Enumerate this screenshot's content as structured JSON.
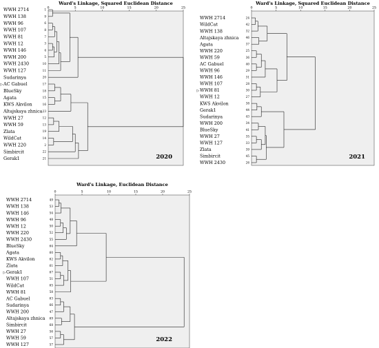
{
  "chart_data": [
    {
      "type": "dendrogram",
      "title": "Ward's Linkage, Squared Euclidean Distance",
      "year_label": "2020",
      "x_ticks": [
        "0",
        "5",
        "10",
        "15",
        "20",
        "25"
      ],
      "xlim": [
        0,
        25
      ],
      "marked_label": "AC Gabuel",
      "leaves": [
        {
          "name": "WWH 2714",
          "index": "1"
        },
        {
          "name": "WWH 138",
          "index": "9"
        },
        {
          "name": "WWH 96",
          "index": "6"
        },
        {
          "name": "WWH 107",
          "index": "8"
        },
        {
          "name": "WWH 81",
          "index": "7"
        },
        {
          "name": "WWH 12",
          "index": "3"
        },
        {
          "name": "WWH 146",
          "index": "4"
        },
        {
          "name": "WWH 200",
          "index": "5"
        },
        {
          "name": "WWH 2430",
          "index": "10"
        },
        {
          "name": "WWH 127",
          "index": "11"
        },
        {
          "name": "Sudarinya",
          "index": "20"
        },
        {
          "name": "AC Gabuel",
          "index": "17"
        },
        {
          "name": "BlueSky",
          "index": "18"
        },
        {
          "name": "Agata",
          "index": "15"
        },
        {
          "name": "KWS Akvilon",
          "index": "16"
        },
        {
          "name": "Altajskaya zhnica",
          "index": "23"
        },
        {
          "name": "WWH 27",
          "index": "12"
        },
        {
          "name": "WWH 59",
          "index": "13"
        },
        {
          "name": "Zlata",
          "index": "19"
        },
        {
          "name": "WildCat",
          "index": "14"
        },
        {
          "name": "WWH 220",
          "index": "2"
        },
        {
          "name": "Simbircit",
          "index": "22"
        },
        {
          "name": "Gerak1",
          "index": "21"
        }
      ],
      "merges": [
        [
          0,
          1,
          0.8
        ],
        [
          2,
          3,
          0.8
        ],
        [
          24,
          4,
          1.2
        ],
        [
          5,
          6,
          0.8
        ],
        [
          26,
          7,
          1.1
        ],
        [
          25,
          27,
          1.6
        ],
        [
          28,
          8,
          2.0
        ],
        [
          29,
          9,
          2.3
        ],
        [
          23,
          30,
          4.0
        ],
        [
          31,
          10,
          5.5
        ],
        [
          11,
          12,
          1.2
        ],
        [
          13,
          14,
          1.2
        ],
        [
          33,
          34,
          2.3
        ],
        [
          35,
          15,
          4.2
        ],
        [
          16,
          17,
          1.0
        ],
        [
          37,
          18,
          2.0
        ],
        [
          19,
          20,
          1.0
        ],
        [
          38,
          39,
          4.5
        ],
        [
          40,
          21,
          5.0
        ],
        [
          41,
          22,
          5.6
        ],
        [
          36,
          42,
          7.3
        ],
        [
          32,
          43,
          25.0
        ]
      ]
    },
    {
      "type": "dendrogram",
      "title": "Ward's Linkage, Squared Euclidean Distance",
      "year_label": "2021",
      "x_ticks": [
        "0",
        "5",
        "10",
        "15",
        "20",
        "25"
      ],
      "xlim": [
        0,
        25
      ],
      "marked_label": "WWH 81",
      "leaves": [
        {
          "name": "WWH 2714",
          "index": "24"
        },
        {
          "name": "WildCat",
          "index": "42"
        },
        {
          "name": "WWH 138",
          "index": "32"
        },
        {
          "name": "Altajskaya zhnica",
          "index": "46"
        },
        {
          "name": "Agata",
          "index": "37"
        },
        {
          "name": "WWH 220",
          "index": "25"
        },
        {
          "name": "WWH 59",
          "index": "36"
        },
        {
          "name": "AC Gabuel",
          "index": "40"
        },
        {
          "name": "WWH 96",
          "index": "29"
        },
        {
          "name": "WWH 146",
          "index": "31"
        },
        {
          "name": "WWH 107",
          "index": "28"
        },
        {
          "name": "WWH 81",
          "index": "30"
        },
        {
          "name": "WWH 12",
          "index": "27"
        },
        {
          "name": "KWS Akvilon",
          "index": "38"
        },
        {
          "name": "Gerak1",
          "index": "44"
        },
        {
          "name": "Sudarinya",
          "index": "43"
        },
        {
          "name": "WWH 200",
          "index": "34"
        },
        {
          "name": "BlueSky",
          "index": "41"
        },
        {
          "name": "WWH 27",
          "index": "35"
        },
        {
          "name": "WWH 127",
          "index": "33"
        },
        {
          "name": "Zlata",
          "index": "39"
        },
        {
          "name": "Simbircit",
          "index": "45"
        },
        {
          "name": "WWH 2430",
          "index": "26"
        }
      ],
      "merges": [
        [
          0,
          1,
          0.8
        ],
        [
          23,
          2,
          1.3
        ],
        [
          3,
          4,
          1.5
        ],
        [
          24,
          25,
          3.2
        ],
        [
          5,
          6,
          1.0
        ],
        [
          7,
          8,
          1.0
        ],
        [
          27,
          28,
          2.0
        ],
        [
          29,
          9,
          2.8
        ],
        [
          10,
          11,
          1.0
        ],
        [
          31,
          12,
          1.8
        ],
        [
          30,
          32,
          5.2
        ],
        [
          26,
          33,
          7.2
        ],
        [
          13,
          14,
          1.1
        ],
        [
          35,
          15,
          2.0
        ],
        [
          16,
          17,
          1.4
        ],
        [
          18,
          19,
          1.0
        ],
        [
          38,
          20,
          2.0
        ],
        [
          37,
          39,
          2.8
        ],
        [
          21,
          22,
          1.0
        ],
        [
          40,
          41,
          3.0
        ],
        [
          36,
          42,
          6.6
        ],
        [
          34,
          43,
          13.0
        ]
      ]
    },
    {
      "type": "dendrogram",
      "title": "Ward's Linkage, Euclidean Distance",
      "year_label": "2022",
      "x_ticks": [
        "0",
        "5",
        "10",
        "15",
        "20",
        "25"
      ],
      "xlim": [
        0,
        25
      ],
      "marked_label": "Gerak1",
      "leaves": [
        {
          "name": "WWH 2714",
          "index": "49"
        },
        {
          "name": "WWH 138",
          "index": "53"
        },
        {
          "name": "WWH 146",
          "index": "54"
        },
        {
          "name": "WWH 96",
          "index": "48"
        },
        {
          "name": "WWH 12",
          "index": "50"
        },
        {
          "name": "WWH 220",
          "index": "52"
        },
        {
          "name": "WWH 2430",
          "index": "55"
        },
        {
          "name": "BlueSky",
          "index": "64"
        },
        {
          "name": "Agata",
          "index": "60"
        },
        {
          "name": "KWS Akvilon",
          "index": "62"
        },
        {
          "name": "Zlata",
          "index": "61"
        },
        {
          "name": "Gerak1",
          "index": "67"
        },
        {
          "name": "WWH 107",
          "index": "51"
        },
        {
          "name": "WildCat",
          "index": "65"
        },
        {
          "name": "WWH 81",
          "index": "58"
        },
        {
          "name": "AC Gabuel",
          "index": "63"
        },
        {
          "name": "Sudarinya",
          "index": "66"
        },
        {
          "name": "WWH 200",
          "index": "47"
        },
        {
          "name": "Altajskaya zhnica",
          "index": "69"
        },
        {
          "name": "Simbircit",
          "index": "68"
        },
        {
          "name": "WWH 27",
          "index": "56"
        },
        {
          "name": "WWH 59",
          "index": "57"
        },
        {
          "name": "WWH 127",
          "index": "57"
        }
      ],
      "merges": [
        [
          0,
          1,
          0.7
        ],
        [
          23,
          2,
          1.1
        ],
        [
          3,
          4,
          1.0
        ],
        [
          25,
          5,
          1.5
        ],
        [
          26,
          6,
          2.1
        ],
        [
          24,
          27,
          2.8
        ],
        [
          28,
          7,
          4.0
        ],
        [
          8,
          9,
          1.0
        ],
        [
          30,
          10,
          1.4
        ],
        [
          11,
          12,
          1.0
        ],
        [
          32,
          13,
          1.6
        ],
        [
          31,
          33,
          2.4
        ],
        [
          34,
          14,
          2.9
        ],
        [
          29,
          35,
          9.5
        ],
        [
          15,
          16,
          1.0
        ],
        [
          37,
          17,
          1.6
        ],
        [
          18,
          19,
          1.2
        ],
        [
          38,
          39,
          2.8
        ],
        [
          20,
          21,
          1.0
        ],
        [
          41,
          22,
          1.6
        ],
        [
          40,
          42,
          3.6
        ],
        [
          36,
          43,
          24.0
        ]
      ]
    }
  ]
}
